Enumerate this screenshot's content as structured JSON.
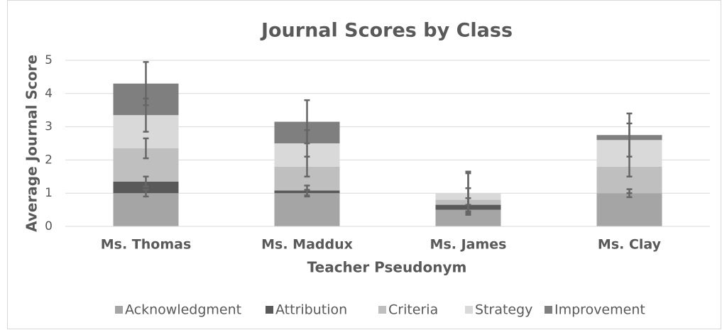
{
  "chart_data": {
    "type": "stacked_bar",
    "title": "Journal Scores by Class",
    "x_label": "Teacher Pseudonym",
    "y_label": "Average Journal Score",
    "categories": [
      "Ms. Thomas",
      "Ms. Maddux",
      "Ms. James",
      "Ms. Clay"
    ],
    "series": [
      {
        "name": "Acknowledgment",
        "color": "#a5a5a5",
        "values": [
          1.0,
          1.0,
          0.5,
          1.0
        ],
        "errors": [
          0.1,
          0.1,
          0.15,
          0.12
        ]
      },
      {
        "name": "Attribution",
        "color": "#595959",
        "values": [
          0.35,
          0.08,
          0.15,
          0
        ],
        "errors": [
          0.15,
          0.15,
          0.2,
          0
        ]
      },
      {
        "name": "Criteria",
        "color": "#bfbfbf",
        "values": [
          1.0,
          0.72,
          0.15,
          0.8
        ],
        "errors": [
          0.3,
          0.3,
          0.35,
          0.3
        ]
      },
      {
        "name": "Strategy",
        "color": "#d9d9d9",
        "values": [
          1.0,
          0.7,
          0.2,
          0.8
        ],
        "errors": [
          0.5,
          0.4,
          0.6,
          0.5
        ]
      },
      {
        "name": "Improvement",
        "color": "#7f7f7f",
        "values": [
          0.95,
          0.65,
          0,
          0.15
        ],
        "errors": [
          0.65,
          0.65,
          0.65,
          0.65
        ]
      }
    ],
    "ylim": [
      0,
      5
    ],
    "yticks": [
      0,
      1,
      2,
      3,
      4,
      5
    ],
    "grid": true,
    "legend": "bottom"
  }
}
